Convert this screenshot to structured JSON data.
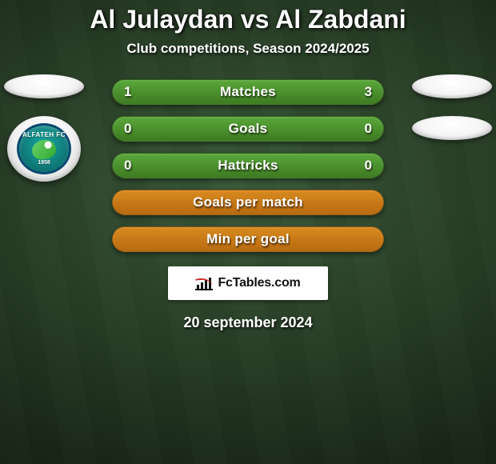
{
  "title": {
    "text": "Al Julaydan vs Al Zabdani",
    "fontsize": 32
  },
  "subtitle": {
    "text": "Club competitions, Season 2024/2025",
    "fontsize": 17
  },
  "club_left": {
    "arc_text": "ALFATEH FC",
    "year": "1958"
  },
  "pill_style": {
    "stat_bg_gradient": [
      "#5aa83a",
      "#3e7a22"
    ],
    "empty_bg_gradient": [
      "#d88a1f",
      "#b86a10"
    ],
    "label_fontsize": 17,
    "num_fontsize": 17,
    "height": 32,
    "radius": 16
  },
  "rows": [
    {
      "label": "Matches",
      "left": "1",
      "right": "3",
      "kind": "stat"
    },
    {
      "label": "Goals",
      "left": "0",
      "right": "0",
      "kind": "stat"
    },
    {
      "label": "Hattricks",
      "left": "0",
      "right": "0",
      "kind": "stat"
    },
    {
      "label": "Goals per match",
      "left": "",
      "right": "",
      "kind": "empty"
    },
    {
      "label": "Min per goal",
      "left": "",
      "right": "",
      "kind": "empty"
    }
  ],
  "brand": {
    "text": "FcTables.com",
    "fontsize": 16
  },
  "date": {
    "text": "20 september 2024",
    "fontsize": 18
  },
  "colors": {
    "title": "#ffffff",
    "subtitle": "#ffffff",
    "date": "#ffffff"
  }
}
